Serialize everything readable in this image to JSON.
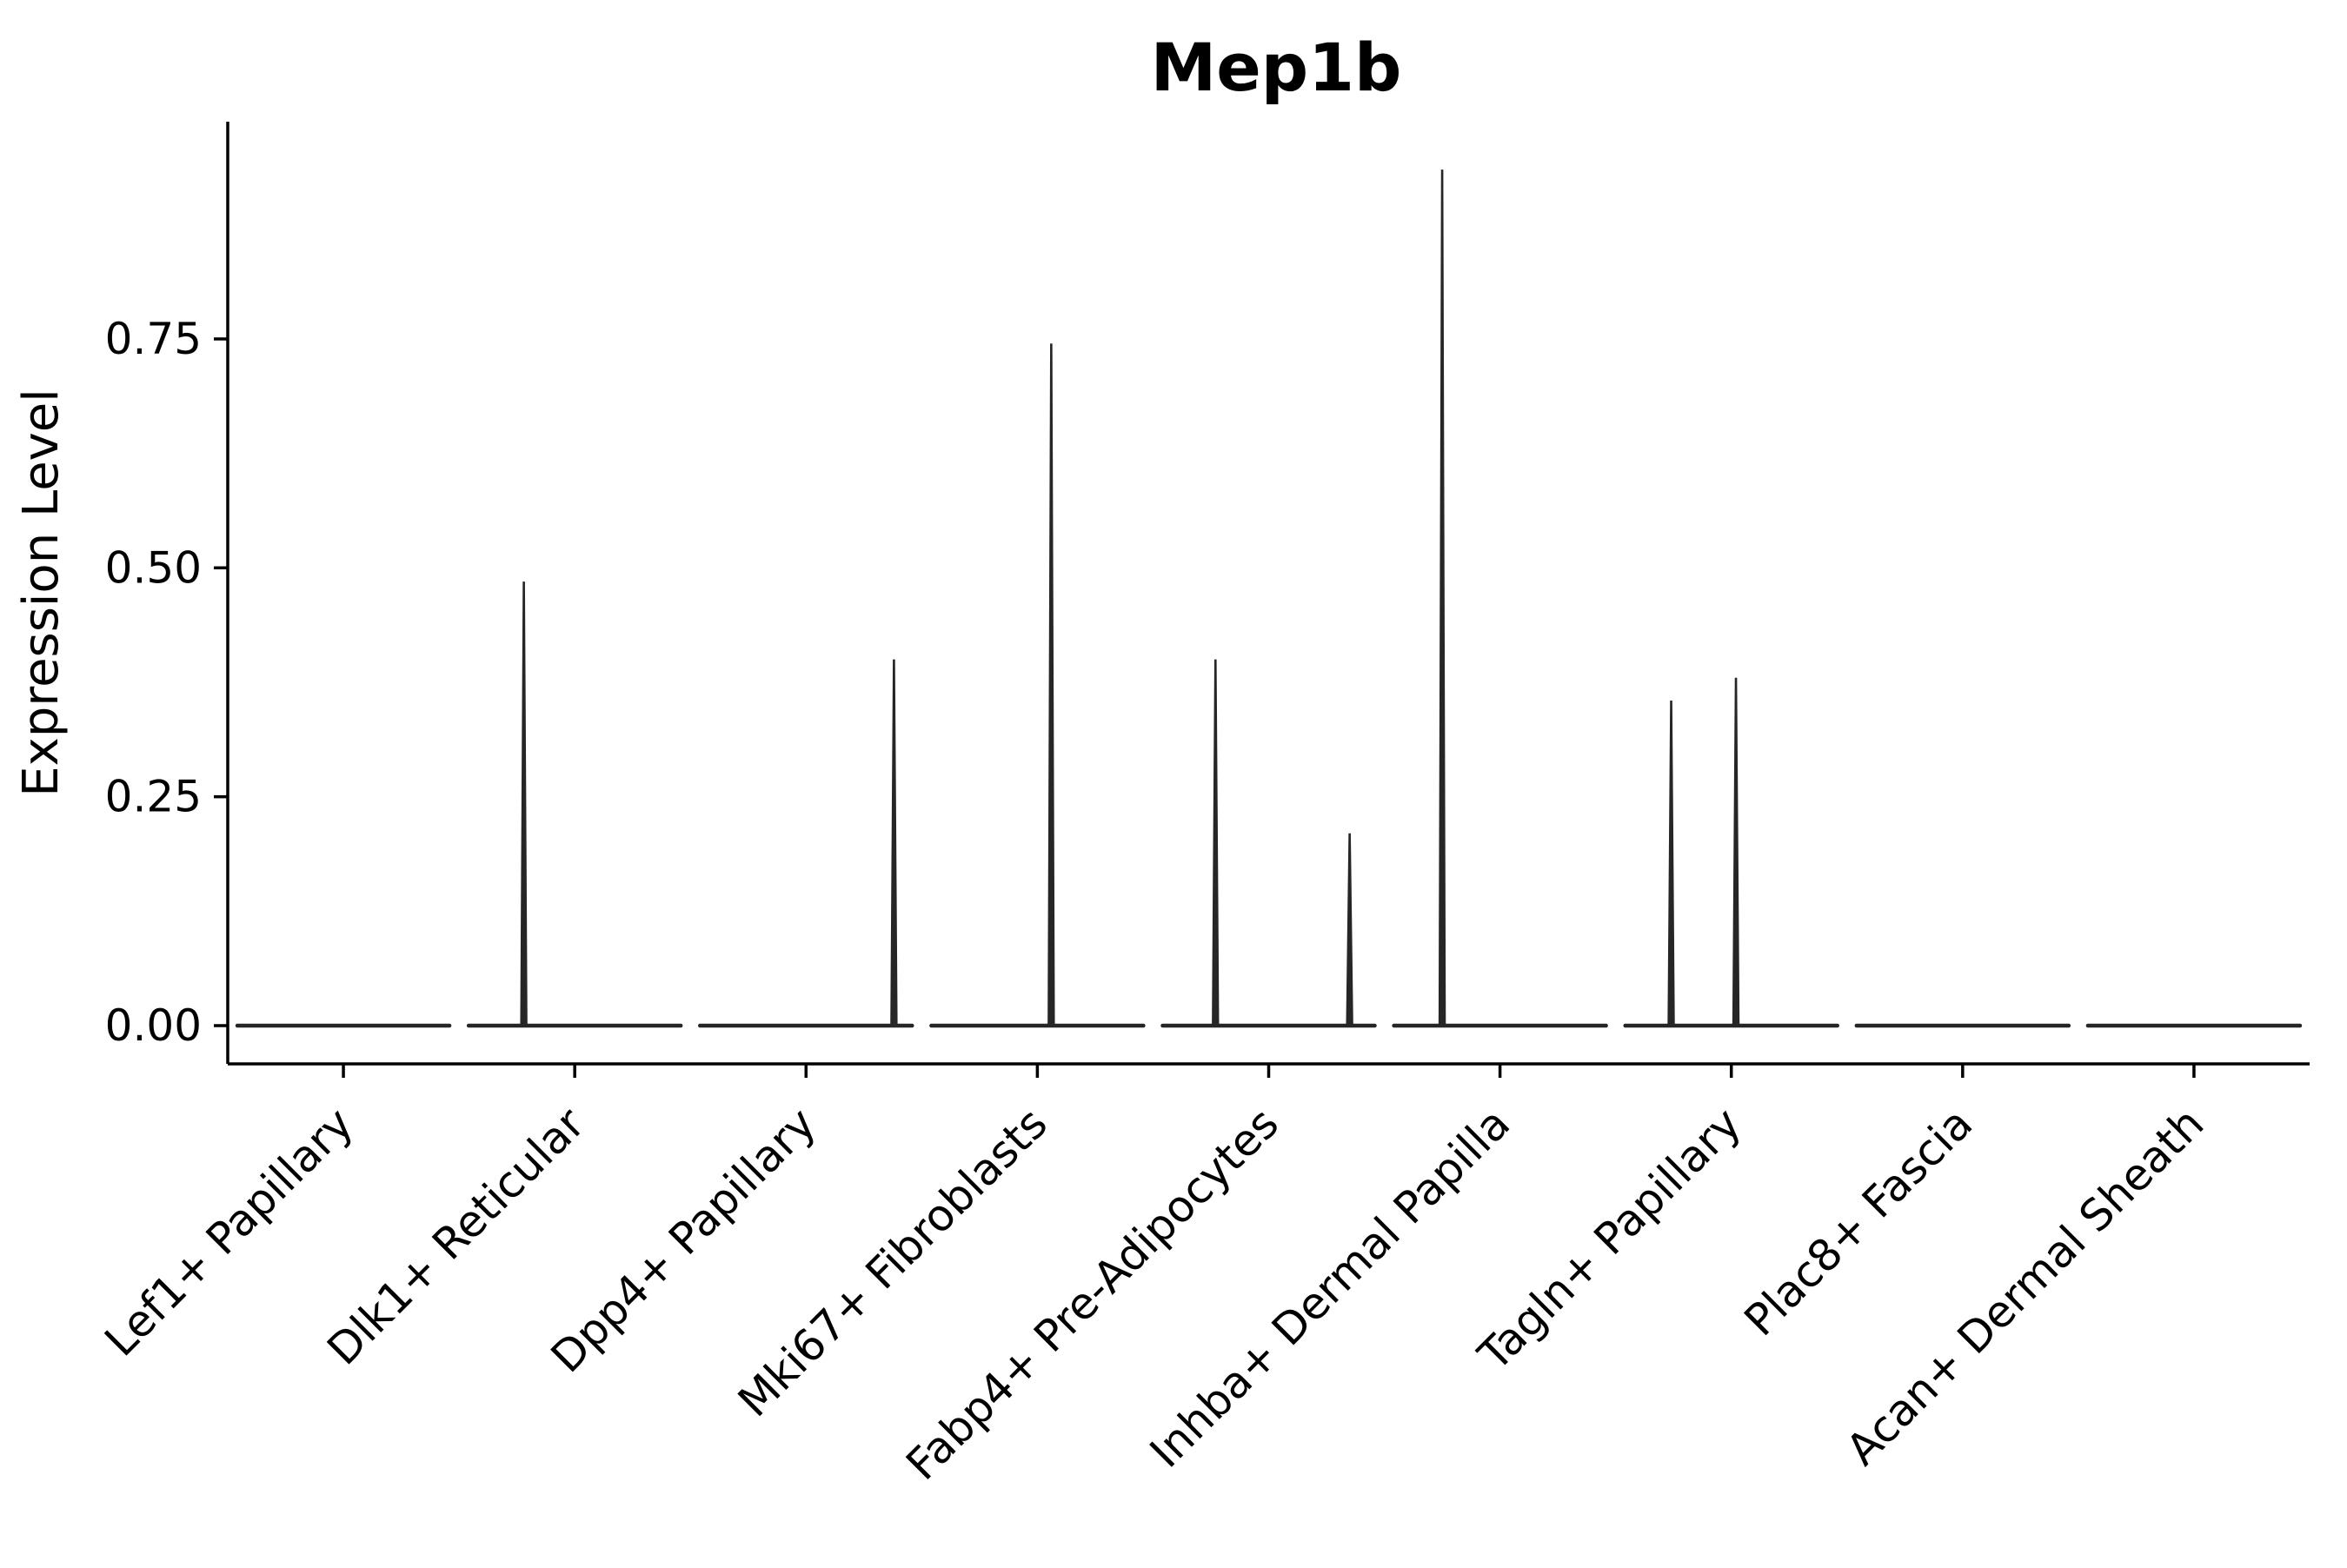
{
  "page": {
    "background": "#ffffff"
  },
  "chart_data": {
    "type": "violin",
    "title": "Mep1b",
    "ylabel": "Expression Level",
    "xlabel": "",
    "ylim": [
      0,
      0.99
    ],
    "grid": false,
    "legend": "none",
    "axis_color": "#000000",
    "line_color": "#262626",
    "text_color": "#000000",
    "yticks": [
      {
        "value": 0.0,
        "label": "0.00"
      },
      {
        "value": 0.25,
        "label": "0.25"
      },
      {
        "value": 0.5,
        "label": "0.50"
      },
      {
        "value": 0.75,
        "label": "0.75"
      }
    ],
    "categories": [
      "Lef1+ Papillary",
      "Dlk1+ Reticular",
      "Dpp4+ Papillary",
      "Mki67+ Fibroblasts",
      "Fabp4+ Pre-Adipocytes",
      "Inhba+ Dermal Papilla",
      "Tagln+ Papillary",
      "Plac8+ Fascia",
      "Acan+ Dermal Sheath"
    ],
    "violins": [
      {
        "category": "Lef1+ Papillary",
        "baseline_value": 0,
        "spikes": []
      },
      {
        "category": "Dlk1+ Reticular",
        "baseline_value": 0,
        "spikes": [
          {
            "offset": -0.22,
            "value": 0.485
          }
        ]
      },
      {
        "category": "Dpp4+ Papillary",
        "baseline_value": 0,
        "spikes": [
          {
            "offset": 0.38,
            "value": 0.4
          }
        ]
      },
      {
        "category": "Mki67+ Fibroblasts",
        "baseline_value": 0,
        "spikes": [
          {
            "offset": 0.06,
            "value": 0.745
          }
        ]
      },
      {
        "category": "Fabp4+ Pre-Adipocytes",
        "baseline_value": 0,
        "spikes": [
          {
            "offset": -0.23,
            "value": 0.4
          },
          {
            "offset": 0.35,
            "value": 0.21
          }
        ]
      },
      {
        "category": "Inhba+ Dermal Papilla",
        "baseline_value": 0,
        "spikes": [
          {
            "offset": -0.25,
            "value": 0.935
          }
        ]
      },
      {
        "category": "Tagln+ Papillary",
        "baseline_value": 0,
        "spikes": [
          {
            "offset": -0.26,
            "value": 0.355
          },
          {
            "offset": 0.02,
            "value": 0.38
          }
        ]
      },
      {
        "category": "Plac8+ Fascia",
        "baseline_value": 0,
        "spikes": []
      },
      {
        "category": "Acan+ Dermal Sheath",
        "baseline_value": 0,
        "spikes": []
      }
    ]
  }
}
